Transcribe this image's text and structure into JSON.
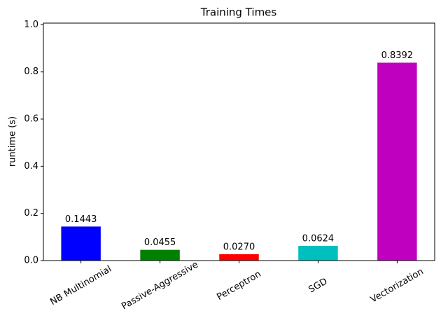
{
  "chart_data": {
    "type": "bar",
    "title": "Training Times",
    "y_label": "runtime (s)",
    "categories": [
      "NB Multinomial",
      "Passive-Aggressive",
      "Perceptron",
      "SGD",
      "Vectorization"
    ],
    "values": [
      0.1443,
      0.0455,
      0.027,
      0.0624,
      0.8392
    ],
    "value_labels": [
      "0.1443",
      "0.0455",
      "0.0270",
      "0.0624",
      "0.8392"
    ],
    "colors": [
      "#0000ff",
      "#008000",
      "#ff0000",
      "#00bfbf",
      "#bf00bf"
    ],
    "ylim": [
      0,
      1.007
    ],
    "yticks": [
      {
        "value": 0,
        "label": "0.0"
      },
      0.2,
      0.4,
      0.6,
      0.8,
      {
        "value": 1,
        "label": "1.0"
      }
    ],
    "grid": false
  }
}
